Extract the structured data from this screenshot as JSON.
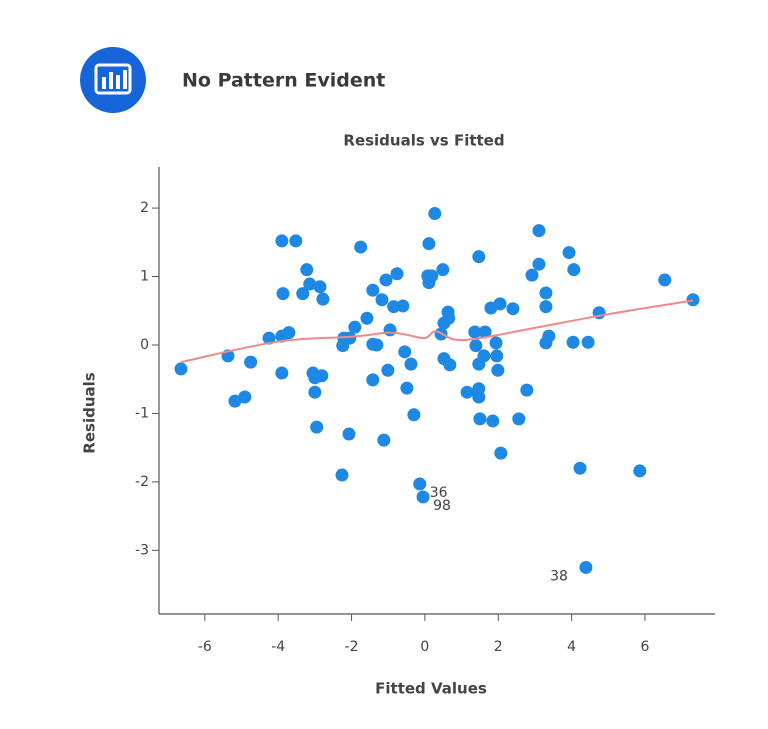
{
  "header": {
    "title": "No Pattern Evident"
  },
  "chart_data": {
    "type": "scatter",
    "title": "Residuals vs Fitted",
    "x_label": "Fitted Values",
    "y_label": "Residuals",
    "xlim": [
      -7.25,
      7.91
    ],
    "ylim": [
      -3.93,
      2.6
    ],
    "xticks": [
      -6,
      -4,
      -2,
      0,
      2,
      4,
      6
    ],
    "yticks": [
      -3,
      -2,
      -1,
      0,
      1,
      2
    ],
    "points": {
      "color": "#1e88e5",
      "x": [
        -6.65,
        -5.37,
        -5.18,
        -4.91,
        -4.75,
        -4.25,
        -3.9,
        -3.87,
        -3.9,
        -3.9,
        -3.71,
        -3.52,
        -3.33,
        -3.22,
        -3.14,
        -3.05,
        -3.0,
        -3.0,
        -2.95,
        -2.86,
        -2.81,
        -2.78,
        -2.26,
        -2.24,
        -2.21,
        -2.07,
        -2.05,
        -1.91,
        -1.75,
        -1.58,
        -1.42,
        -1.42,
        -1.42,
        -1.31,
        -1.17,
        -1.12,
        -1.06,
        -1.01,
        -0.95,
        -0.85,
        -0.76,
        -0.6,
        -0.55,
        -0.49,
        -0.38,
        -0.3,
        -0.14,
        -0.05,
        0.08,
        0.11,
        0.11,
        0.27,
        0.19,
        0.44,
        0.49,
        0.52,
        0.52,
        0.63,
        0.68,
        0.65,
        1.15,
        1.36,
        1.39,
        1.47,
        1.47,
        1.47,
        1.47,
        1.5,
        1.64,
        1.61,
        1.8,
        1.85,
        1.94,
        1.96,
        1.99,
        2.05,
        2.07,
        2.4,
        2.56,
        2.78,
        2.92,
        3.11,
        3.11,
        3.3,
        3.3,
        3.3,
        3.38,
        3.93,
        4.06,
        4.04,
        4.23,
        4.39,
        4.45,
        4.75,
        5.86,
        6.54,
        7.31
      ],
      "y": [
        -0.35,
        -0.16,
        -0.82,
        -0.76,
        -0.25,
        0.1,
        1.52,
        0.75,
        0.13,
        -0.41,
        0.18,
        1.52,
        0.75,
        1.1,
        0.89,
        -0.41,
        -0.69,
        -0.48,
        -1.2,
        0.85,
        -0.45,
        0.67,
        -1.9,
        -0.01,
        0.1,
        -1.3,
        0.1,
        0.26,
        1.43,
        0.39,
        0.8,
        0.01,
        -0.51,
        0,
        0.66,
        -1.39,
        0.95,
        -0.37,
        0.22,
        0.56,
        1.04,
        0.57,
        -0.1,
        -0.63,
        -0.28,
        -1.02,
        -2.03,
        -2.22,
        1.01,
        1.48,
        0.91,
        1.92,
        1.01,
        0.16,
        1.1,
        0.32,
        -0.2,
        0.48,
        -0.29,
        0.39,
        -0.69,
        0.19,
        -0.01,
        1.29,
        -0.28,
        -0.64,
        -0.76,
        -1.08,
        0.19,
        -0.16,
        0.54,
        -1.11,
        0.03,
        -0.16,
        -0.37,
        0.6,
        -1.58,
        0.53,
        -1.08,
        -0.66,
        1.02,
        1.67,
        1.18,
        0.76,
        0.56,
        0.03,
        0.13,
        1.35,
        1.1,
        0.04,
        -1.8,
        -3.25,
        0.04,
        0.47,
        -1.84,
        0.95,
        0.66
      ]
    },
    "smooth": {
      "color": "#f08a8a",
      "x": [
        -6.65,
        -4,
        -2,
        -1,
        -0.5,
        0,
        0.3,
        0.8,
        1.5,
        3,
        5,
        7.31
      ],
      "y": [
        -0.25,
        0.05,
        0.12,
        0.18,
        0.15,
        0.1,
        0.2,
        0.08,
        0.1,
        0.25,
        0.45,
        0.65
      ]
    },
    "annotations": [
      {
        "text": "36",
        "x": -0.14,
        "y": -2.03
      },
      {
        "text": "98",
        "x": -0.05,
        "y": -2.22
      },
      {
        "text": "38",
        "x": 4.39,
        "y": -3.25
      }
    ]
  }
}
